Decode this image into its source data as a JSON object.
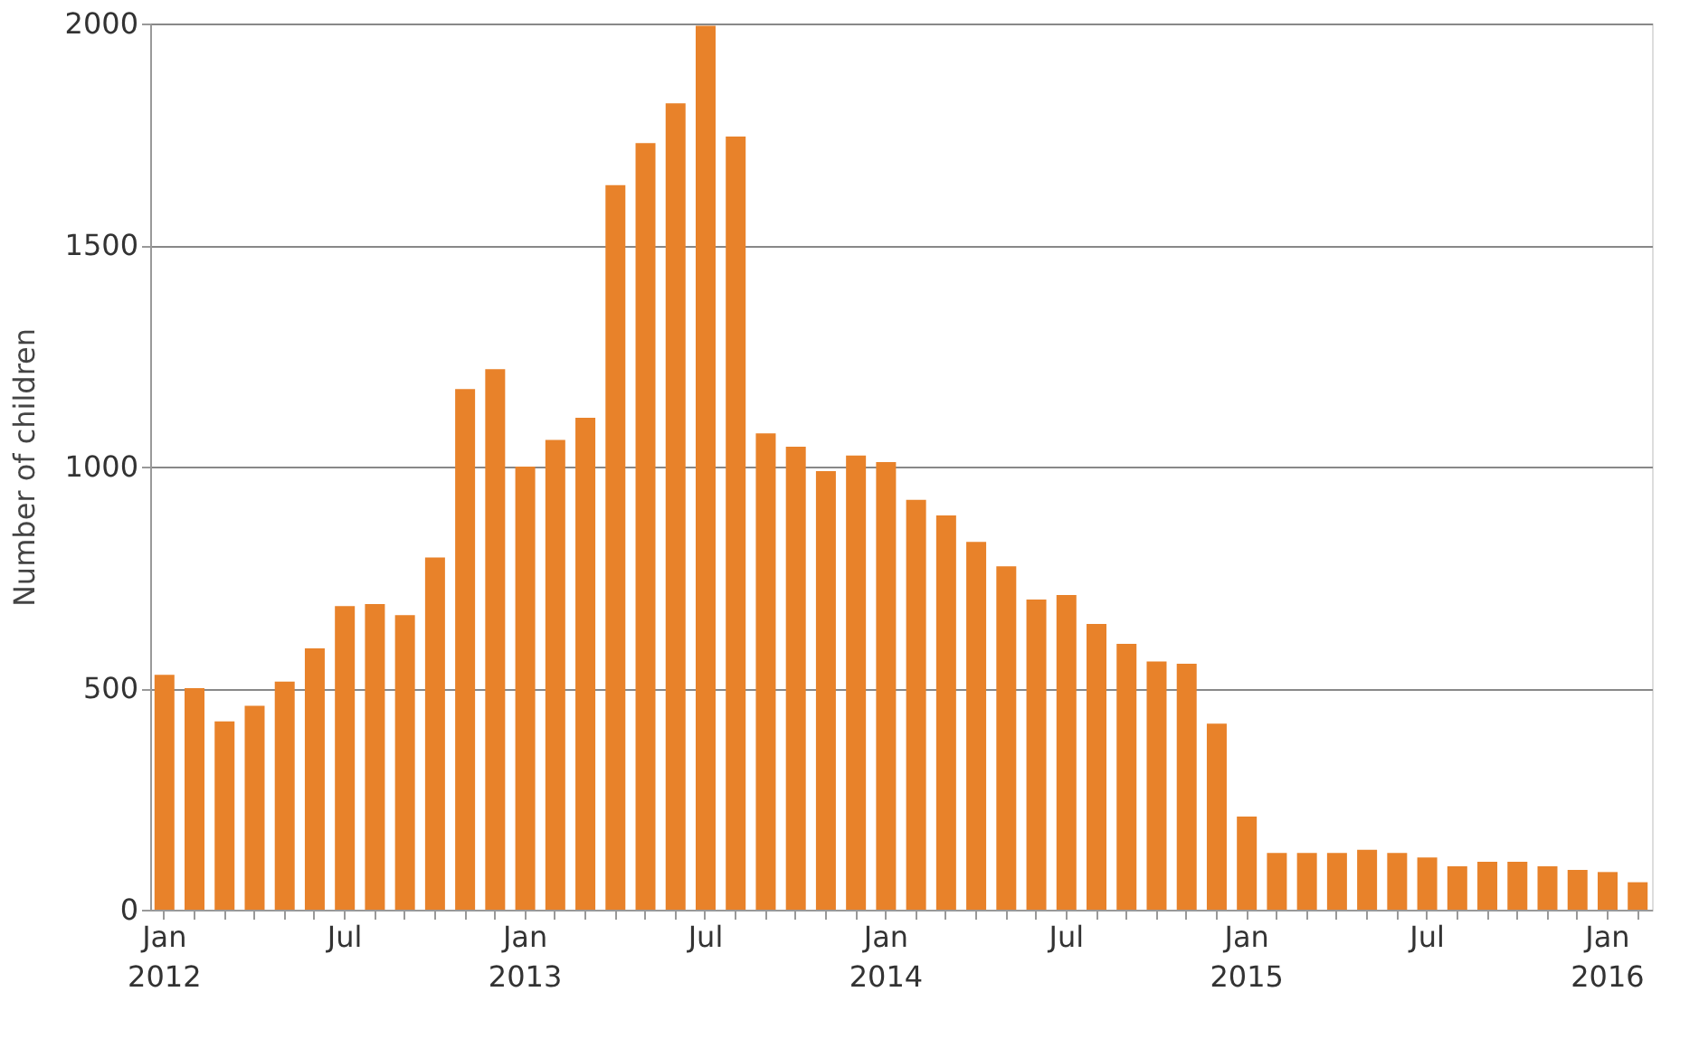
{
  "chart_data": {
    "type": "bar",
    "ylabel": "Number of children",
    "categories": [
      "Jan 2012",
      null,
      null,
      null,
      null,
      null,
      "Jul",
      null,
      null,
      null,
      null,
      null,
      "Jan 2013",
      null,
      null,
      null,
      null,
      null,
      "Jul",
      null,
      null,
      null,
      null,
      null,
      "Jan 2014",
      null,
      null,
      null,
      null,
      null,
      "Jul",
      null,
      null,
      null,
      null,
      null,
      "Jan 2015",
      null,
      null,
      null,
      null,
      null,
      "Jul",
      null,
      null,
      null,
      null,
      null,
      "Jan 2016",
      null
    ],
    "values": [
      530,
      500,
      425,
      460,
      515,
      590,
      685,
      690,
      665,
      795,
      1175,
      1220,
      1000,
      1060,
      1110,
      1635,
      1730,
      1820,
      1995,
      1745,
      1075,
      1045,
      990,
      1025,
      1010,
      925,
      890,
      830,
      775,
      700,
      710,
      645,
      600,
      560,
      555,
      420,
      210,
      128,
      128,
      128,
      135,
      128,
      118,
      98,
      108,
      108,
      98,
      90,
      85,
      62
    ],
    "color": "#e8822a",
    "ylim": [
      0,
      2000
    ],
    "yticks": [
      0,
      500,
      1000,
      1500,
      2000
    ],
    "grid": "y"
  }
}
